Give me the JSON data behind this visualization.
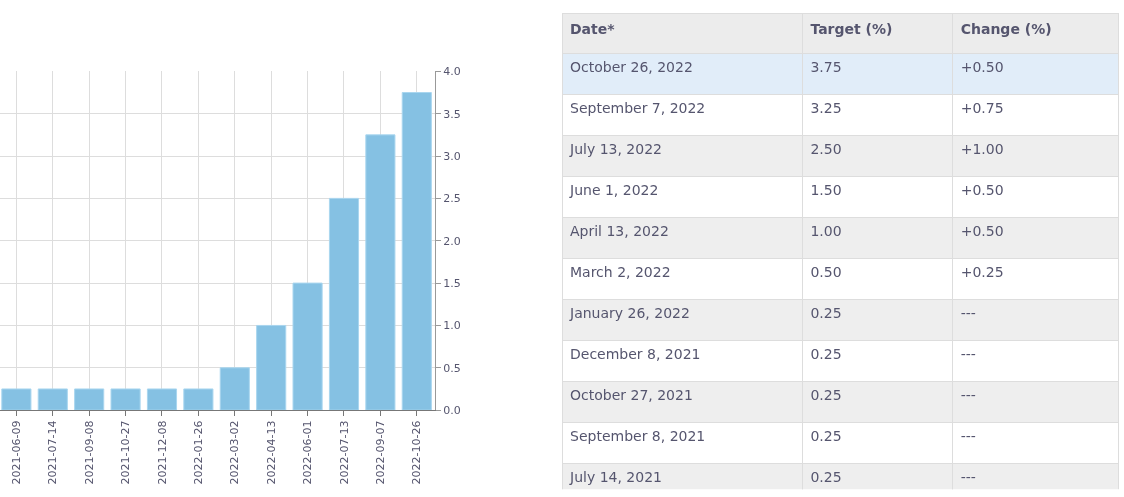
{
  "chart_data": [
    {
      "type": "bar",
      "categories": [
        "2021-06-09",
        "2021-07-14",
        "2021-09-08",
        "2021-10-27",
        "2021-12-08",
        "2022-01-26",
        "2022-03-02",
        "2022-04-13",
        "2022-06-01",
        "2022-07-13",
        "2022-09-07",
        "2022-10-26"
      ],
      "values": [
        0.25,
        0.25,
        0.25,
        0.25,
        0.25,
        0.25,
        0.5,
        1.0,
        1.5,
        2.5,
        3.25,
        3.75
      ],
      "color": "#85c1e3",
      "ylim": [
        0,
        4
      ],
      "yticks": [
        {
          "value": 0,
          "label": "0.0"
        },
        {
          "value": 0.5,
          "label": "0.5"
        },
        {
          "value": 1,
          "label": "1.0"
        },
        {
          "value": 1.5,
          "label": "1.5"
        },
        {
          "value": 2,
          "label": "2.0"
        },
        {
          "value": 2.5,
          "label": "2.5"
        },
        {
          "value": 3,
          "label": "3.0"
        },
        {
          "value": 3.5,
          "label": "3.5"
        },
        {
          "value": 4,
          "label": "4.0"
        }
      ],
      "grid": true
    },
    {
      "type": "other",
      "categories": [
        "Date*",
        "Target (%)",
        "Change (%)"
      ],
      "cell_labels": [
        [
          "October 26, 2022",
          "3.75",
          "+0.50"
        ],
        [
          "September 7, 2022",
          "3.25",
          "+0.75"
        ],
        [
          "July 13, 2022",
          "2.50",
          "+1.00"
        ],
        [
          "June 1, 2022",
          "1.50",
          "+0.50"
        ],
        [
          "April 13, 2022",
          "1.00",
          "+0.50"
        ],
        [
          "March 2, 2022",
          "0.50",
          "+0.25"
        ],
        [
          "January 26, 2022",
          "0.25",
          "---"
        ],
        [
          "December 8, 2021",
          "0.25",
          "---"
        ],
        [
          "October 27, 2021",
          "0.25",
          "---"
        ],
        [
          "September 8, 2021",
          "0.25",
          "---"
        ],
        [
          "July 14, 2021",
          "0.25",
          "---"
        ]
      ]
    }
  ]
}
